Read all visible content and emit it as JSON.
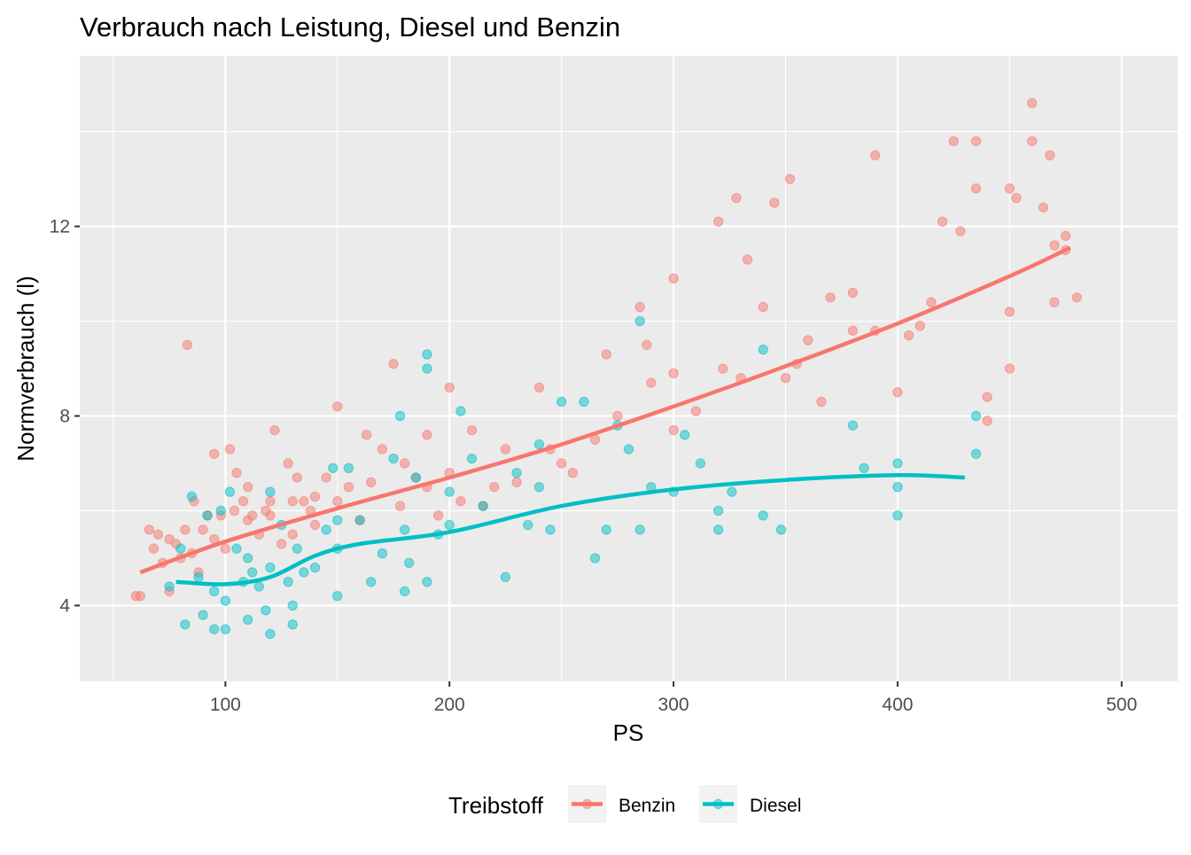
{
  "chart_data": {
    "type": "scatter",
    "title": "Verbrauch nach Leistung, Diesel und Benzin",
    "xlabel": "PS",
    "ylabel": "Normverbrauch (l)",
    "xlim": [
      35,
      525
    ],
    "ylim": [
      2.4,
      15.6
    ],
    "x_ticks": [
      100,
      200,
      300,
      400,
      500
    ],
    "y_ticks": [
      4,
      8,
      12
    ],
    "grid": true,
    "legend": {
      "title": "Treibstoff",
      "position": "bottom",
      "entries": [
        "Benzin",
        "Diesel"
      ]
    },
    "series": [
      {
        "name": "Benzin",
        "color": "#F8766D",
        "points": [
          [
            60,
            4.2
          ],
          [
            62,
            4.2
          ],
          [
            66,
            5.6
          ],
          [
            68,
            5.2
          ],
          [
            70,
            5.5
          ],
          [
            72,
            4.9
          ],
          [
            75,
            5.4
          ],
          [
            75,
            4.3
          ],
          [
            78,
            5.3
          ],
          [
            80,
            5.0
          ],
          [
            82,
            5.6
          ],
          [
            83,
            9.5
          ],
          [
            85,
            5.1
          ],
          [
            86,
            6.2
          ],
          [
            88,
            4.7
          ],
          [
            90,
            5.6
          ],
          [
            92,
            5.9
          ],
          [
            95,
            5.4
          ],
          [
            95,
            7.2
          ],
          [
            98,
            5.9
          ],
          [
            100,
            5.2
          ],
          [
            102,
            7.3
          ],
          [
            104,
            6.0
          ],
          [
            105,
            6.8
          ],
          [
            108,
            6.2
          ],
          [
            110,
            5.8
          ],
          [
            110,
            6.5
          ],
          [
            112,
            5.9
          ],
          [
            115,
            5.5
          ],
          [
            118,
            6.0
          ],
          [
            120,
            5.9
          ],
          [
            120,
            6.2
          ],
          [
            122,
            7.7
          ],
          [
            125,
            5.3
          ],
          [
            128,
            7.0
          ],
          [
            130,
            6.2
          ],
          [
            130,
            5.5
          ],
          [
            132,
            6.7
          ],
          [
            135,
            6.2
          ],
          [
            138,
            6.0
          ],
          [
            140,
            6.3
          ],
          [
            140,
            5.7
          ],
          [
            145,
            6.7
          ],
          [
            150,
            6.2
          ],
          [
            150,
            8.2
          ],
          [
            155,
            6.5
          ],
          [
            160,
            5.8
          ],
          [
            163,
            7.6
          ],
          [
            165,
            6.6
          ],
          [
            170,
            7.3
          ],
          [
            175,
            9.1
          ],
          [
            178,
            6.1
          ],
          [
            180,
            7.0
          ],
          [
            185,
            6.7
          ],
          [
            190,
            7.6
          ],
          [
            190,
            6.5
          ],
          [
            195,
            5.9
          ],
          [
            200,
            6.8
          ],
          [
            200,
            8.6
          ],
          [
            205,
            6.2
          ],
          [
            210,
            7.7
          ],
          [
            215,
            6.1
          ],
          [
            220,
            6.5
          ],
          [
            225,
            7.3
          ],
          [
            230,
            6.6
          ],
          [
            240,
            8.6
          ],
          [
            245,
            7.3
          ],
          [
            250,
            7.0
          ],
          [
            255,
            6.8
          ],
          [
            265,
            7.5
          ],
          [
            270,
            9.3
          ],
          [
            275,
            8.0
          ],
          [
            285,
            10.3
          ],
          [
            288,
            9.5
          ],
          [
            290,
            8.7
          ],
          [
            300,
            8.9
          ],
          [
            300,
            7.7
          ],
          [
            300,
            10.9
          ],
          [
            310,
            8.1
          ],
          [
            320,
            12.1
          ],
          [
            322,
            9.0
          ],
          [
            328,
            12.6
          ],
          [
            330,
            8.8
          ],
          [
            333,
            11.3
          ],
          [
            340,
            10.3
          ],
          [
            345,
            12.5
          ],
          [
            350,
            8.8
          ],
          [
            352,
            13.0
          ],
          [
            355,
            9.1
          ],
          [
            360,
            9.6
          ],
          [
            366,
            8.3
          ],
          [
            370,
            10.5
          ],
          [
            380,
            10.6
          ],
          [
            380,
            9.8
          ],
          [
            390,
            13.5
          ],
          [
            390,
            9.8
          ],
          [
            400,
            8.5
          ],
          [
            405,
            9.7
          ],
          [
            410,
            9.9
          ],
          [
            415,
            10.4
          ],
          [
            420,
            12.1
          ],
          [
            425,
            13.8
          ],
          [
            428,
            11.9
          ],
          [
            435,
            13.8
          ],
          [
            435,
            12.8
          ],
          [
            440,
            8.4
          ],
          [
            440,
            7.9
          ],
          [
            450,
            12.8
          ],
          [
            450,
            10.2
          ],
          [
            450,
            9.0
          ],
          [
            453,
            12.6
          ],
          [
            460,
            14.6
          ],
          [
            460,
            13.8
          ],
          [
            465,
            12.4
          ],
          [
            468,
            13.5
          ],
          [
            470,
            10.4
          ],
          [
            470,
            11.6
          ],
          [
            475,
            11.5
          ],
          [
            475,
            11.8
          ],
          [
            480,
            10.5
          ]
        ],
        "trend": [
          [
            62,
            4.7
          ],
          [
            100,
            5.35
          ],
          [
            150,
            6.05
          ],
          [
            200,
            6.7
          ],
          [
            250,
            7.4
          ],
          [
            300,
            8.2
          ],
          [
            350,
            9.05
          ],
          [
            400,
            9.95
          ],
          [
            450,
            10.95
          ],
          [
            477,
            11.55
          ]
        ]
      },
      {
        "name": "Diesel",
        "color": "#00BFC4",
        "points": [
          [
            75,
            4.4
          ],
          [
            80,
            5.2
          ],
          [
            82,
            3.6
          ],
          [
            85,
            6.3
          ],
          [
            88,
            4.6
          ],
          [
            90,
            3.8
          ],
          [
            92,
            5.9
          ],
          [
            95,
            3.5
          ],
          [
            95,
            4.3
          ],
          [
            98,
            6.0
          ],
          [
            100,
            4.1
          ],
          [
            100,
            3.5
          ],
          [
            102,
            6.4
          ],
          [
            105,
            5.2
          ],
          [
            108,
            4.5
          ],
          [
            110,
            3.7
          ],
          [
            110,
            5.0
          ],
          [
            112,
            4.7
          ],
          [
            115,
            4.4
          ],
          [
            118,
            3.9
          ],
          [
            120,
            3.4
          ],
          [
            120,
            4.8
          ],
          [
            120,
            6.4
          ],
          [
            125,
            5.7
          ],
          [
            128,
            4.5
          ],
          [
            130,
            3.6
          ],
          [
            130,
            4.0
          ],
          [
            132,
            5.2
          ],
          [
            135,
            4.7
          ],
          [
            140,
            4.8
          ],
          [
            145,
            5.6
          ],
          [
            148,
            6.9
          ],
          [
            150,
            4.2
          ],
          [
            150,
            5.2
          ],
          [
            150,
            5.8
          ],
          [
            155,
            6.9
          ],
          [
            160,
            5.8
          ],
          [
            165,
            4.5
          ],
          [
            170,
            5.1
          ],
          [
            175,
            7.1
          ],
          [
            178,
            8.0
          ],
          [
            180,
            4.3
          ],
          [
            180,
            5.6
          ],
          [
            182,
            4.9
          ],
          [
            185,
            6.7
          ],
          [
            190,
            9.3
          ],
          [
            190,
            9.0
          ],
          [
            190,
            4.5
          ],
          [
            195,
            5.5
          ],
          [
            200,
            5.7
          ],
          [
            200,
            6.4
          ],
          [
            205,
            8.1
          ],
          [
            210,
            7.1
          ],
          [
            215,
            6.1
          ],
          [
            225,
            4.6
          ],
          [
            230,
            6.8
          ],
          [
            235,
            5.7
          ],
          [
            240,
            6.5
          ],
          [
            240,
            7.4
          ],
          [
            245,
            5.6
          ],
          [
            250,
            8.3
          ],
          [
            260,
            8.3
          ],
          [
            265,
            5.0
          ],
          [
            270,
            5.6
          ],
          [
            275,
            7.8
          ],
          [
            280,
            7.3
          ],
          [
            285,
            10.0
          ],
          [
            285,
            5.6
          ],
          [
            290,
            6.5
          ],
          [
            300,
            6.4
          ],
          [
            305,
            7.6
          ],
          [
            312,
            7.0
          ],
          [
            320,
            6.0
          ],
          [
            320,
            5.6
          ],
          [
            326,
            6.4
          ],
          [
            340,
            9.4
          ],
          [
            340,
            5.9
          ],
          [
            348,
            5.6
          ],
          [
            380,
            7.8
          ],
          [
            385,
            6.9
          ],
          [
            400,
            7.0
          ],
          [
            400,
            6.5
          ],
          [
            400,
            5.9
          ],
          [
            435,
            8.0
          ],
          [
            435,
            7.2
          ]
        ],
        "trend": [
          [
            78,
            4.5
          ],
          [
            100,
            4.45
          ],
          [
            120,
            4.6
          ],
          [
            140,
            5.05
          ],
          [
            160,
            5.3
          ],
          [
            200,
            5.55
          ],
          [
            250,
            6.1
          ],
          [
            300,
            6.45
          ],
          [
            350,
            6.65
          ],
          [
            400,
            6.75
          ],
          [
            430,
            6.7
          ]
        ]
      }
    ]
  }
}
